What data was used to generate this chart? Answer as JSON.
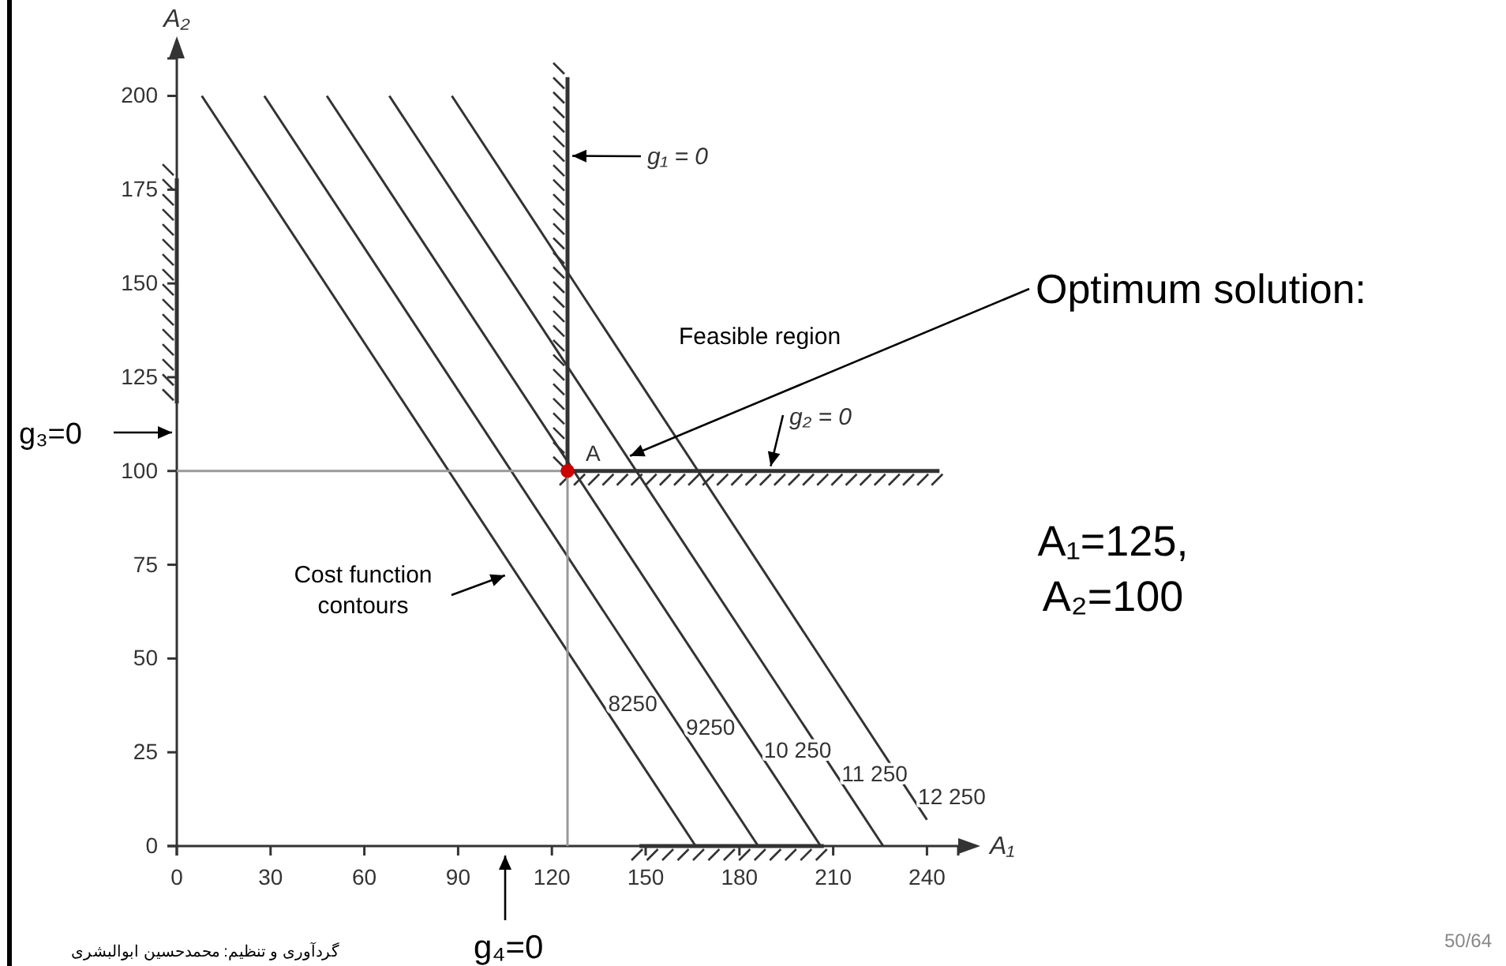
{
  "chart_data": {
    "type": "line",
    "xlabel": "A₁",
    "ylabel": "A₂",
    "xlim": [
      0,
      250
    ],
    "ylim": [
      0,
      210
    ],
    "xticks": [
      0,
      30,
      60,
      90,
      120,
      150,
      180,
      210,
      240
    ],
    "yticks": [
      0,
      25,
      50,
      75,
      100,
      125,
      150,
      175,
      200
    ],
    "series": [
      {
        "name": "8250",
        "color": "#333333",
        "x": [
          8,
          166
        ],
        "values": [
          200,
          0
        ]
      },
      {
        "name": "9250",
        "color": "#333333",
        "x": [
          28,
          186
        ],
        "values": [
          200,
          0
        ]
      },
      {
        "name": "10 250",
        "color": "#333333",
        "x": [
          48,
          206
        ],
        "values": [
          200,
          0
        ]
      },
      {
        "name": "11 250",
        "color": "#333333",
        "x": [
          68,
          226
        ],
        "values": [
          200,
          0
        ]
      },
      {
        "name": "12 250",
        "color": "#333333",
        "x": [
          88,
          240
        ],
        "values": [
          200,
          7
        ]
      },
      {
        "color": "#333333",
        "x": [
          125,
          125
        ],
        "values": [
          100,
          205
        ]
      },
      {
        "color": "#333333",
        "x": [
          125,
          244
        ],
        "values": [
          100,
          100
        ]
      },
      {
        "color": "#333333",
        "x": [
          0,
          0
        ],
        "values": [
          118,
          178
        ]
      },
      {
        "color": "#333333",
        "x": [
          148,
          207
        ],
        "values": [
          0,
          0
        ]
      },
      {
        "color": "#999999",
        "x": [
          0,
          125
        ],
        "values": [
          100,
          100
        ]
      },
      {
        "color": "#999999",
        "x": [
          125,
          125
        ],
        "values": [
          0,
          100
        ]
      },
      {
        "type": "scatter",
        "color": "#cc0000",
        "marker": "circle",
        "x": [
          125
        ],
        "values": [
          100
        ]
      }
    ],
    "annotations": [
      {
        "text": "g₁ = 0",
        "x": 125,
        "y": 184
      },
      {
        "text": "g₂ = 0",
        "x": 190,
        "y": 100
      },
      "g₃=0",
      "g₄=0",
      {
        "text": "Cost function\ncontours",
        "x": 106,
        "y": 73
      },
      {
        "text": "Optimum solution:",
        "x": 145,
        "y": 104
      },
      "Feasible region",
      "A₁=125,\nA₂=100",
      "گردآوری و تنظیم: محمدحسین ابوالبشری",
      "50/64",
      {
        "text": "A",
        "x": 125,
        "y": 100
      }
    ]
  }
}
